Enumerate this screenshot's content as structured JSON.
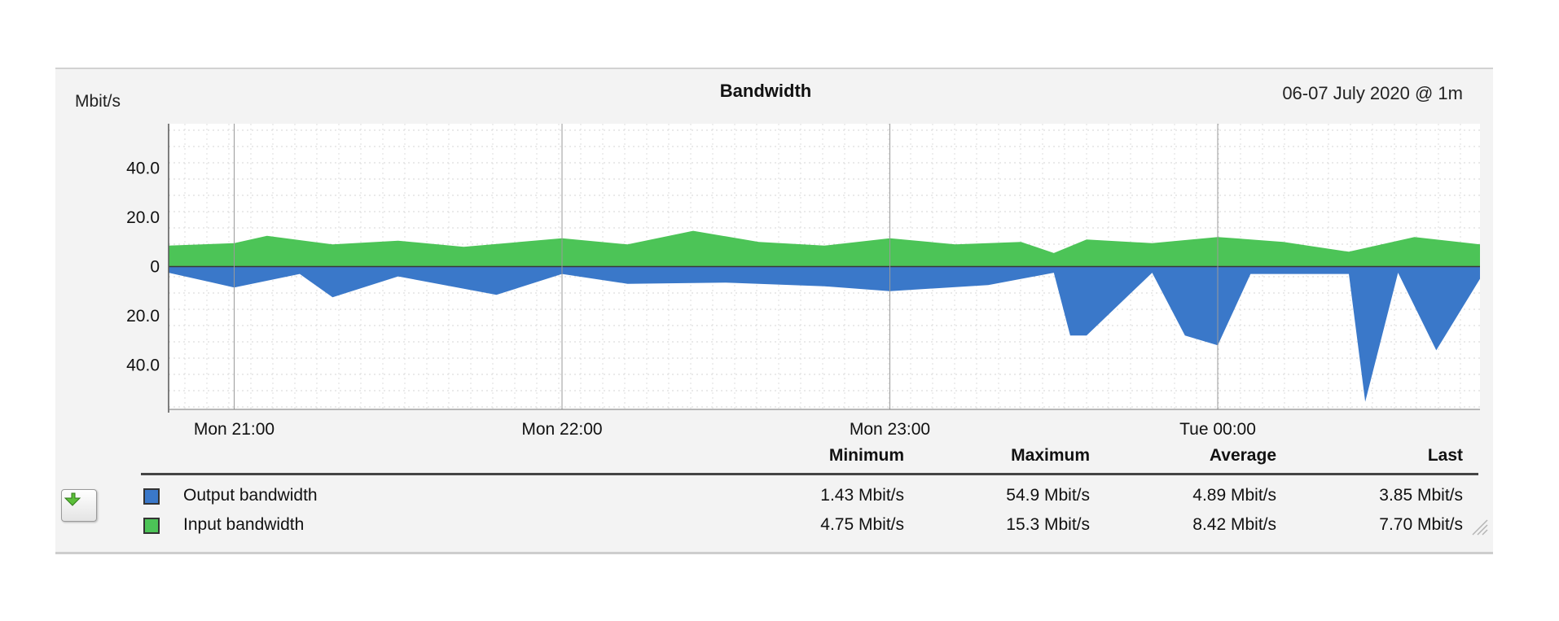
{
  "header": {
    "unit": "Mbit/s",
    "title": "Bandwidth",
    "range": "06-07 July 2020 @ 1m"
  },
  "legend": {
    "columns": [
      "Minimum",
      "Maximum",
      "Average",
      "Last"
    ],
    "rows": [
      {
        "name": "Output bandwidth",
        "color": "#3a78c9",
        "stats": [
          "1.43 Mbit/s",
          "54.9 Mbit/s",
          "4.89 Mbit/s",
          "3.85 Mbit/s"
        ]
      },
      {
        "name": "Input bandwidth",
        "color": "#4cc457",
        "stats": [
          "4.75 Mbit/s",
          "15.3 Mbit/s",
          "8.42 Mbit/s",
          "7.70 Mbit/s"
        ]
      }
    ]
  },
  "export_button": {
    "icon": "download-arrow-icon"
  },
  "chart_data": {
    "type": "area",
    "title": "Bandwidth",
    "ylabel": "Mbit/s",
    "y_tick_labels": [
      "40.0",
      "20.0",
      "0",
      "20.0",
      "40.0"
    ],
    "y_tick_values": [
      40,
      20,
      0,
      -20,
      -40
    ],
    "ylim": [
      -58,
      58
    ],
    "x_tick_labels": [
      "Mon 21:00",
      "Mon 22:00",
      "Mon 23:00",
      "Tue 00:00"
    ],
    "x_tick_values": [
      "2020-07-06 21:00",
      "2020-07-06 22:00",
      "2020-07-06 23:00",
      "2020-07-07 00:00"
    ],
    "x_range": [
      "2020-07-06 20:48",
      "2020-07-07 00:48"
    ],
    "grid": true,
    "mirrored": true,
    "series": [
      {
        "name": "Input bandwidth",
        "color": "#4cc457",
        "direction": "up",
        "x": [
          "2020-07-06 20:48",
          "2020-07-06 21:00",
          "2020-07-06 21:06",
          "2020-07-06 21:18",
          "2020-07-06 21:30",
          "2020-07-06 21:42",
          "2020-07-06 22:00",
          "2020-07-06 22:12",
          "2020-07-06 22:24",
          "2020-07-06 22:36",
          "2020-07-06 22:48",
          "2020-07-06 23:00",
          "2020-07-06 23:12",
          "2020-07-06 23:24",
          "2020-07-06 23:30",
          "2020-07-06 23:36",
          "2020-07-06 23:48",
          "2020-07-07 00:00",
          "2020-07-07 00:12",
          "2020-07-07 00:24",
          "2020-07-07 00:36",
          "2020-07-07 00:48"
        ],
        "values": [
          8.5,
          9.5,
          12.5,
          9.0,
          10.5,
          8.0,
          11.5,
          9.0,
          14.5,
          10.0,
          8.5,
          11.5,
          9.0,
          10.0,
          5.5,
          11.0,
          9.5,
          12.0,
          10.0,
          6.0,
          12.0,
          9.0
        ]
      },
      {
        "name": "Output bandwidth",
        "color": "#3a78c9",
        "direction": "down",
        "x": [
          "2020-07-06 20:48",
          "2020-07-06 21:00",
          "2020-07-06 21:12",
          "2020-07-06 21:18",
          "2020-07-06 21:30",
          "2020-07-06 21:48",
          "2020-07-06 22:00",
          "2020-07-06 22:12",
          "2020-07-06 22:30",
          "2020-07-06 22:48",
          "2020-07-06 23:00",
          "2020-07-06 23:18",
          "2020-07-06 23:30",
          "2020-07-06 23:33",
          "2020-07-06 23:36",
          "2020-07-06 23:48",
          "2020-07-06 23:54",
          "2020-07-07 00:00",
          "2020-07-07 00:06",
          "2020-07-07 00:24",
          "2020-07-07 00:27",
          "2020-07-07 00:33",
          "2020-07-07 00:40",
          "2020-07-07 00:48"
        ],
        "values": [
          2.5,
          8.5,
          3.0,
          12.5,
          4.0,
          11.5,
          3.0,
          7.0,
          6.5,
          8.0,
          10.0,
          7.5,
          2.5,
          28.0,
          28.0,
          2.5,
          28.0,
          32.0,
          3.0,
          3.0,
          54.9,
          2.5,
          34.0,
          5.0
        ]
      }
    ]
  }
}
